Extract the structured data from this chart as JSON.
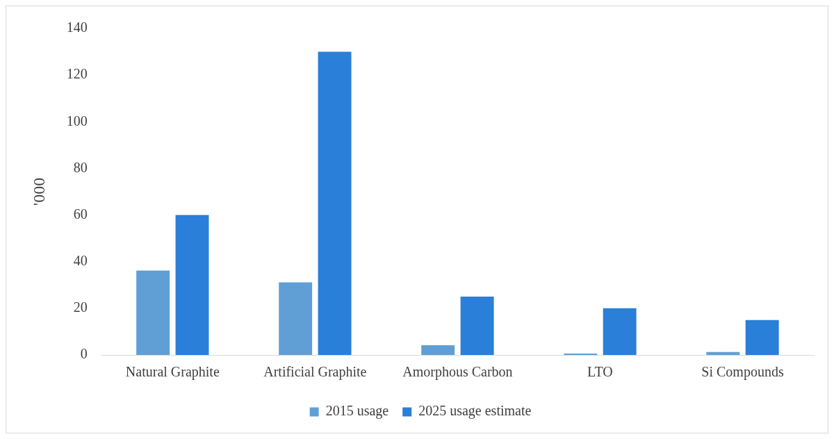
{
  "chart_data": {
    "type": "bar",
    "ylabel": "'000",
    "categories": [
      "Natural Graphite",
      "Artificial Graphite",
      "Amorphous Carbon",
      "LTO",
      "Si Compounds"
    ],
    "series": [
      {
        "name": "2015 usage",
        "color": "#5f9fd6",
        "values": [
          36.2,
          31.1,
          4.2,
          0.6,
          1.3
        ]
      },
      {
        "name": "2025 usage estimate",
        "color": "#2a7fd8",
        "values": [
          60,
          130,
          25,
          20,
          15
        ]
      }
    ],
    "ylim": [
      0,
      140
    ],
    "yticks": [
      0,
      20,
      40,
      60,
      80,
      100,
      120,
      140
    ],
    "grid": false,
    "legend": "bottom"
  }
}
